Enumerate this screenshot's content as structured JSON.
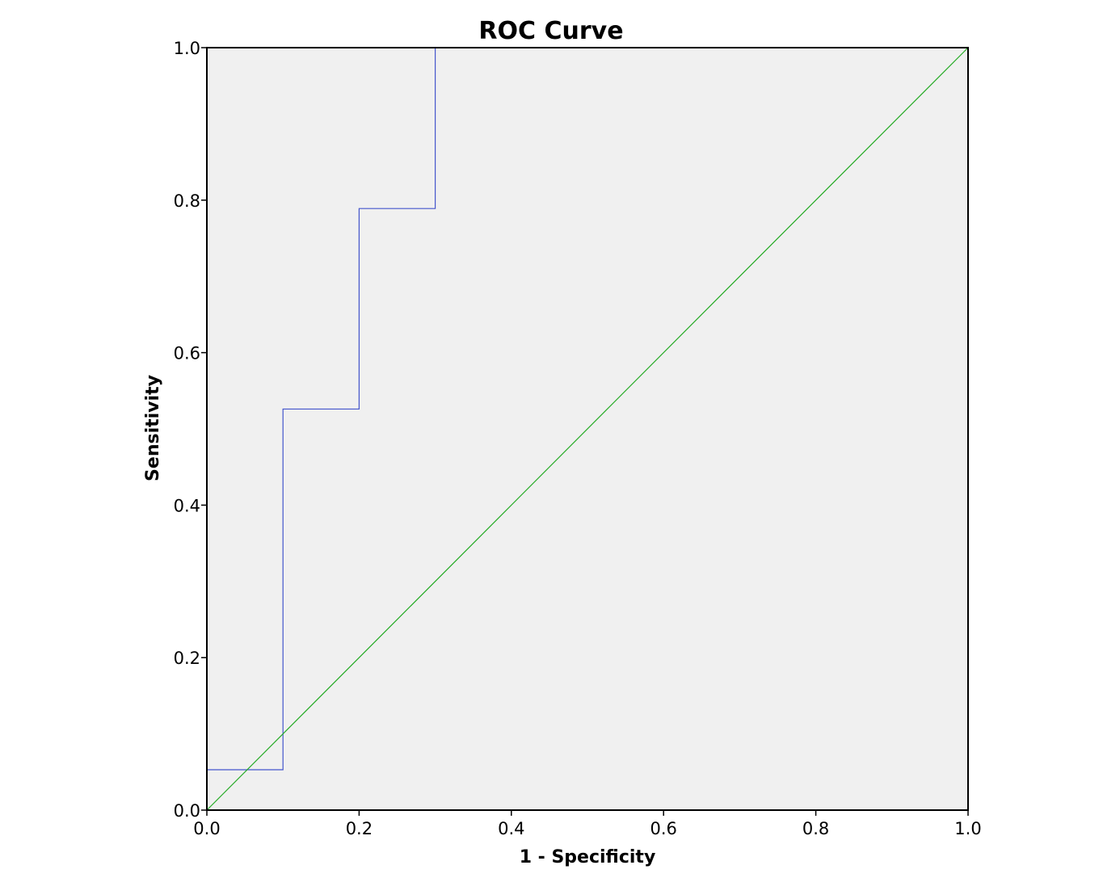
{
  "chart_data": {
    "type": "line",
    "title": "ROC Curve",
    "xlabel": "1 - Specificity",
    "ylabel": "Sensitivity",
    "xlim": [
      0.0,
      1.0
    ],
    "ylim": [
      0.0,
      1.0
    ],
    "x_ticks": [
      "0.0",
      "0.2",
      "0.4",
      "0.6",
      "0.8",
      "1.0"
    ],
    "y_ticks": [
      "0.0",
      "0.2",
      "0.4",
      "0.6",
      "0.8",
      "1.0"
    ],
    "grid": false,
    "plot_background": "#f0f0f0",
    "series": [
      {
        "color": "#4455cc",
        "x": [
          0.0,
          0.0,
          0.1,
          0.1,
          0.2,
          0.2,
          0.3,
          0.3
        ],
        "y": [
          0.0,
          0.053,
          0.053,
          0.526,
          0.526,
          0.789,
          0.789,
          1.0
        ]
      },
      {
        "color": "#22aa22",
        "x": [
          0.0,
          1.0
        ],
        "y": [
          0.0,
          1.0
        ]
      }
    ]
  }
}
